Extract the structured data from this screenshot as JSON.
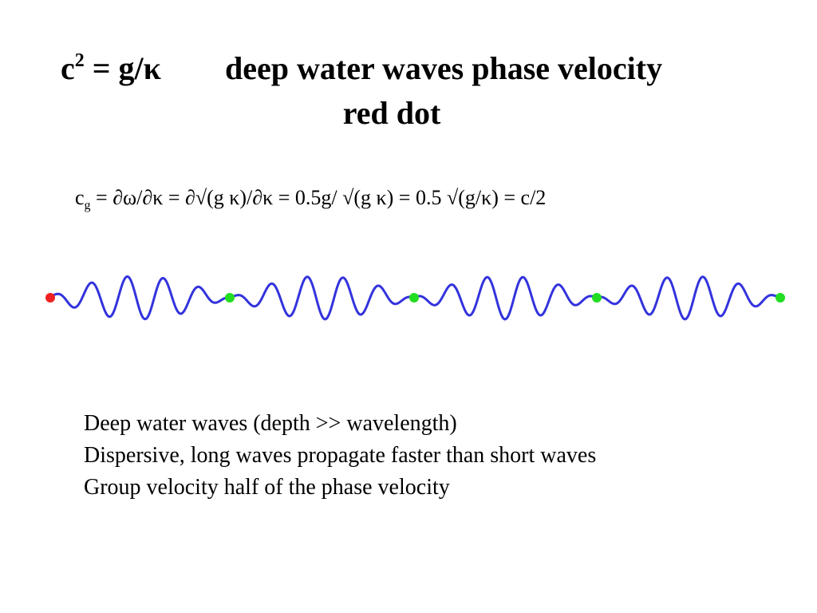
{
  "title": {
    "equation_base": "c",
    "equation_exponent": "2",
    "equation_rest": " = g/κ",
    "description": "deep water waves phase velocity",
    "line2": "red dot"
  },
  "formula": {
    "lhs": "c",
    "lhs_subscript": "g",
    "rhs": " = ∂ω/∂κ = ∂√(g κ)/∂κ = 0.5g/ √(g κ) = 0.5 √(g/κ) = c/2"
  },
  "wave": {
    "wave_color": "#3333dd",
    "group_dot_color": "#22dd22",
    "phase_dot_color": "#ee2222"
  },
  "notes": [
    "Deep water waves (depth >> wavelength)",
    "Dispersive, long waves propagate faster than short waves",
    "Group velocity half of the phase velocity"
  ]
}
